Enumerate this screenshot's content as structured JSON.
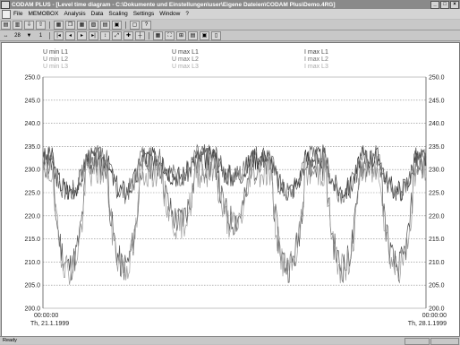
{
  "window": {
    "title": "CODAM PLUS - [Level time diagram - C:\\Dokumente und Einstellungen\\user\\Eigene Dateien\\CODAM Plus\\Demo.4RG]"
  },
  "menu": [
    "File",
    "MEMOBOX",
    "Analysis",
    "Data",
    "Scaling",
    "Settings",
    "Window",
    "?"
  ],
  "toolbar2": {
    "left": "28",
    "mid": "1"
  },
  "chart_data": {
    "type": "line",
    "y_axis": {
      "min": 200,
      "max": 250,
      "step": 5,
      "ticks": [
        "250.0",
        "245.0",
        "240.0",
        "235.0",
        "230.0",
        "225.0",
        "220.0",
        "215.0",
        "210.0",
        "205.0",
        "200.0"
      ]
    },
    "x_axis": {
      "start_time": "00:00:00",
      "start_date": "Th, 21.1.1999",
      "end_time": "00:00:00",
      "end_date": "Th, 28.1.1999"
    },
    "legend": {
      "umin": [
        "U min L1",
        "U min L2",
        "U min L3"
      ],
      "umax": [
        "U max L1",
        "U max L2",
        "U max L3"
      ],
      "imax": [
        "I max L1",
        "I max L2",
        "I max L3"
      ]
    },
    "series": [
      {
        "name": "U max L1",
        "color": "#333333",
        "base": 232.5,
        "drop": 7,
        "noise": 2.5,
        "seed": 3
      },
      {
        "name": "U max L2",
        "color": "#666666",
        "base": 233.0,
        "drop": 8,
        "noise": 2.5,
        "seed": 7
      },
      {
        "name": "U min L1",
        "color": "#555555",
        "base": 231.0,
        "drop": 22,
        "noise": 3.5,
        "seed": 11
      },
      {
        "name": "U min L3",
        "color": "#9a9a9a",
        "base": 229.5,
        "drop": 21,
        "noise": 3.5,
        "seed": 19
      }
    ]
  },
  "status": {
    "text": "Ready"
  }
}
